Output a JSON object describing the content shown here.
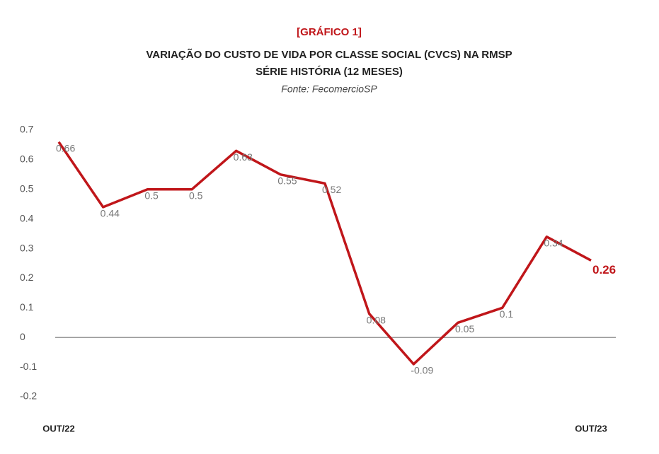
{
  "chart_data": {
    "type": "line",
    "label": "[GRÁFICO 1]",
    "title": "VARIAÇÃO DO CUSTO DE VIDA POR CLASSE SOCIAL (CVCS) NA RMSP",
    "subtitle": "SÉRIE HISTÓRIA (12 MESES)",
    "source": "Fonte: FecomercioSP",
    "categories": [
      "OUT/22",
      null,
      null,
      null,
      null,
      null,
      null,
      null,
      null,
      null,
      null,
      null,
      "OUT/23"
    ],
    "series": [
      {
        "name": "CVCS",
        "color": "#c0161a",
        "values": [
          0.66,
          0.44,
          0.5,
          0.5,
          0.63,
          0.55,
          0.52,
          0.08,
          -0.09,
          0.05,
          0.1,
          0.34,
          0.26
        ]
      }
    ],
    "ylim": [
      -0.2,
      0.7
    ],
    "yticks": [
      0.7,
      0.6,
      0.5,
      0.4,
      0.3,
      0.2,
      0.1,
      0,
      -0.1,
      -0.2
    ],
    "zero_line": true
  }
}
